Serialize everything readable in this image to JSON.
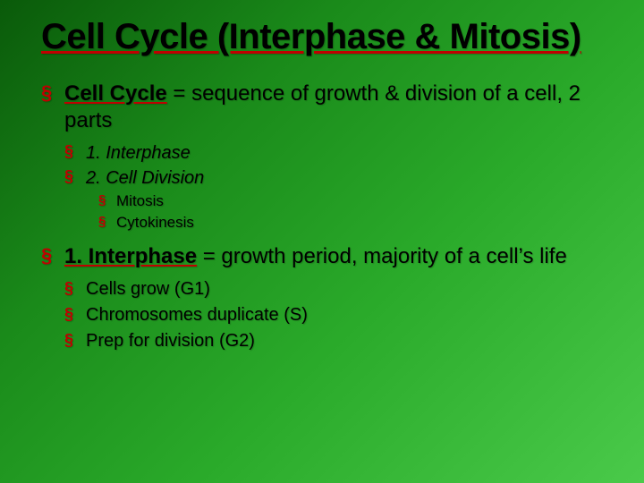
{
  "theme": {
    "background_gradient": [
      "#0a5a0a",
      "#1a8a1a",
      "#2aaa2a",
      "#4aca4a"
    ],
    "bullet_color": "#c00000",
    "underline_color": "#c00000",
    "text_color": "#000000",
    "title_font": "Arial Black",
    "body_font": "Arial",
    "title_fontsize_pt": 32,
    "lvl1_fontsize_pt": 18,
    "lvl2_fontsize_pt": 15,
    "lvl3_fontsize_pt": 13
  },
  "title": "Cell Cycle (Interphase & Mitosis)",
  "b1_term": "Cell Cycle",
  "b1_rest": " = sequence of growth & division of a cell, 2 parts",
  "b1_sub1": "1.  Interphase",
  "b1_sub2": "2.  Cell Division",
  "b1_sub2_a": "Mitosis",
  "b1_sub2_b": "Cytokinesis",
  "b2_term": "1. Interphase",
  "b2_rest": " = growth period, majority of a cell’s life",
  "b2_sub1": "Cells grow (G1)",
  "b2_sub2": "Chromosomes duplicate (S)",
  "b2_sub3": "Prep for division (G2)"
}
